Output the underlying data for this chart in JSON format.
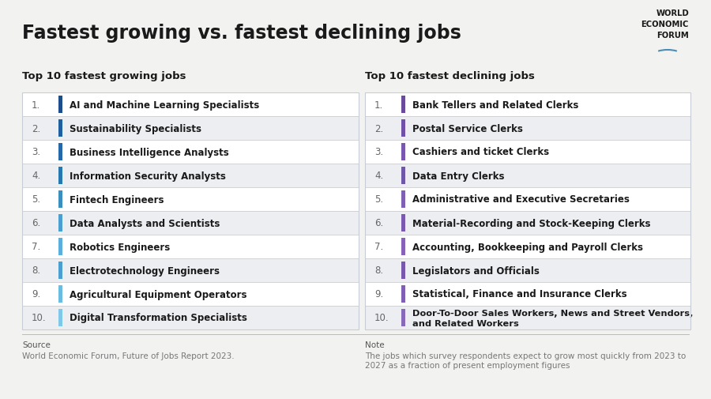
{
  "title": "Fastest growing vs. fastest declining jobs",
  "bg_color": "#f2f2f0",
  "title_color": "#1a1a1a",
  "growing_header": "Top 10 fastest growing jobs",
  "declining_header": "Top 10 fastest declining jobs",
  "growing_jobs": [
    "AI and Machine Learning Specialists",
    "Sustainability Specialists",
    "Business Intelligence Analysts",
    "Information Security Analysts",
    "Fintech Engineers",
    "Data Analysts and Scientists",
    "Robotics Engineers",
    "Electrotechnology Engineers",
    "Agricultural Equipment Operators",
    "Digital Transformation Specialists"
  ],
  "declining_jobs": [
    "Bank Tellers and Related Clerks",
    "Postal Service Clerks",
    "Cashiers and ticket Clerks",
    "Data Entry Clerks",
    "Administrative and Executive Secretaries",
    "Material-Recording and Stock-Keeping Clerks",
    "Accounting, Bookkeeping and Payroll Clerks",
    "Legislators and Officials",
    "Statistical, Finance and Insurance Clerks",
    "Door-To-Door Sales Workers, News and Street Vendors,\nand Related Workers"
  ],
  "growing_bar_color": "#2d5f9e",
  "declining_bar_color": "#7b5ea7",
  "row_colors": [
    "#ffffff",
    "#eceef2"
  ],
  "source_label": "Source",
  "source_text": "World Economic Forum, Future of Jobs Report 2023.",
  "note_label": "Note",
  "note_text": "The jobs which survey respondents expect to grow most quickly from 2023 to\n2027 as a fraction of present employment figures",
  "wef_text": "WORLD\nECONOMIC\nFORUM",
  "wef_color": "#1a1a1a",
  "header_color": "#1a1a1a",
  "number_color": "#666666",
  "job_text_color": "#1a1a1a",
  "divider_color": "#c8cdd8",
  "footer_text_color": "#777777",
  "footer_label_color": "#555555"
}
